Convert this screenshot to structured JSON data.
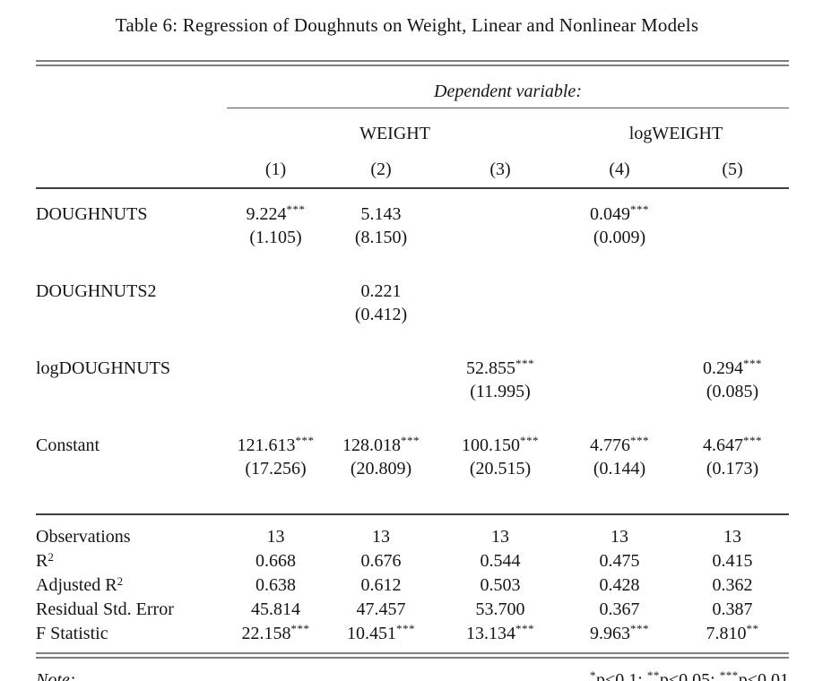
{
  "page": {
    "title": "Table 6: Regression of Doughnuts on Weight, Linear and Nonlinear Models"
  },
  "table": {
    "dependent_variable_label": "Dependent variable:",
    "groups": [
      {
        "label": "WEIGHT"
      },
      {
        "label": "logWEIGHT"
      }
    ],
    "columns": [
      "(1)",
      "(2)",
      "(3)",
      "(4)",
      "(5)"
    ],
    "coefficients": [
      {
        "label": "DOUGHNUTS",
        "cells": [
          {
            "est": "9.224",
            "stars": "***",
            "se": "(1.105)"
          },
          {
            "est": "5.143",
            "stars": "",
            "se": "(8.150)"
          },
          {
            "est": "",
            "stars": "",
            "se": ""
          },
          {
            "est": "0.049",
            "stars": "***",
            "se": "(0.009)"
          },
          {
            "est": "",
            "stars": "",
            "se": ""
          }
        ]
      },
      {
        "label": "DOUGHNUTS2",
        "cells": [
          {
            "est": "",
            "stars": "",
            "se": ""
          },
          {
            "est": "0.221",
            "stars": "",
            "se": "(0.412)"
          },
          {
            "est": "",
            "stars": "",
            "se": ""
          },
          {
            "est": "",
            "stars": "",
            "se": ""
          },
          {
            "est": "",
            "stars": "",
            "se": ""
          }
        ]
      },
      {
        "label": "logDOUGHNUTS",
        "cells": [
          {
            "est": "",
            "stars": "",
            "se": ""
          },
          {
            "est": "",
            "stars": "",
            "se": ""
          },
          {
            "est": "52.855",
            "stars": "***",
            "se": "(11.995)"
          },
          {
            "est": "",
            "stars": "",
            "se": ""
          },
          {
            "est": "0.294",
            "stars": "***",
            "se": "(0.085)"
          }
        ]
      },
      {
        "label": "Constant",
        "cells": [
          {
            "est": "121.613",
            "stars": "***",
            "se": "(17.256)"
          },
          {
            "est": "128.018",
            "stars": "***",
            "se": "(20.809)"
          },
          {
            "est": "100.150",
            "stars": "***",
            "se": "(20.515)"
          },
          {
            "est": "4.776",
            "stars": "***",
            "se": "(0.144)"
          },
          {
            "est": "4.647",
            "stars": "***",
            "se": "(0.173)"
          }
        ]
      }
    ],
    "statistics": [
      {
        "label": "Observations",
        "sup": "",
        "cells": [
          {
            "v": "13",
            "stars": ""
          },
          {
            "v": "13",
            "stars": ""
          },
          {
            "v": "13",
            "stars": ""
          },
          {
            "v": "13",
            "stars": ""
          },
          {
            "v": "13",
            "stars": ""
          }
        ]
      },
      {
        "label": "R",
        "sup": "2",
        "cells": [
          {
            "v": "0.668",
            "stars": ""
          },
          {
            "v": "0.676",
            "stars": ""
          },
          {
            "v": "0.544",
            "stars": ""
          },
          {
            "v": "0.475",
            "stars": ""
          },
          {
            "v": "0.415",
            "stars": ""
          }
        ]
      },
      {
        "label": "Adjusted R",
        "sup": "2",
        "cells": [
          {
            "v": "0.638",
            "stars": ""
          },
          {
            "v": "0.612",
            "stars": ""
          },
          {
            "v": "0.503",
            "stars": ""
          },
          {
            "v": "0.428",
            "stars": ""
          },
          {
            "v": "0.362",
            "stars": ""
          }
        ]
      },
      {
        "label": "Residual Std. Error",
        "sup": "",
        "cells": [
          {
            "v": "45.814",
            "stars": ""
          },
          {
            "v": "47.457",
            "stars": ""
          },
          {
            "v": "53.700",
            "stars": ""
          },
          {
            "v": "0.367",
            "stars": ""
          },
          {
            "v": "0.387",
            "stars": ""
          }
        ]
      },
      {
        "label": "F Statistic",
        "sup": "",
        "cells": [
          {
            "v": "22.158",
            "stars": "***"
          },
          {
            "v": "10.451",
            "stars": "***"
          },
          {
            "v": "13.134",
            "stars": "***"
          },
          {
            "v": "9.963",
            "stars": "***"
          },
          {
            "v": "7.810",
            "stars": "**"
          }
        ]
      }
    ],
    "note": {
      "label": "Note:",
      "segments": [
        {
          "stars": "*",
          "text": "p<0.1; "
        },
        {
          "stars": "**",
          "text": "p<0.05; "
        },
        {
          "stars": "***",
          "text": "p<0.01"
        }
      ]
    }
  }
}
